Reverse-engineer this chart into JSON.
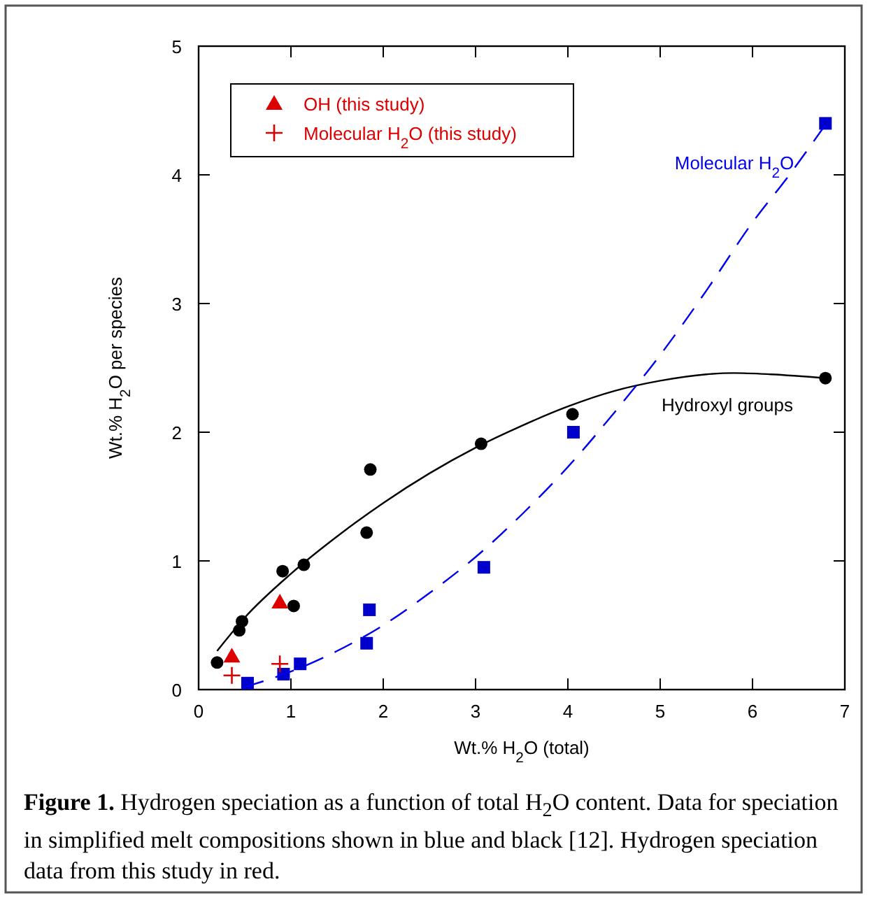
{
  "chart_data": {
    "type": "scatter",
    "xlabel": "Wt.% H$_{2}$O (total)",
    "ylabel": "Wt.% H$_{2}$O per species",
    "xlim": [
      0,
      7
    ],
    "ylim": [
      0,
      5
    ],
    "xticks": [
      0,
      1,
      2,
      3,
      4,
      5,
      6,
      7
    ],
    "yticks": [
      0,
      1,
      2,
      3,
      4,
      5
    ],
    "grid": false,
    "legend": "top left",
    "series": [
      {
        "color": "#000000",
        "marker": "circle",
        "x": [
          0.2,
          0.44,
          0.47,
          0.91,
          1.03,
          1.14,
          1.82,
          1.86,
          3.06,
          4.05,
          6.79
        ],
        "values": [
          0.21,
          0.46,
          0.53,
          0.92,
          0.65,
          0.97,
          1.22,
          1.71,
          1.91,
          2.14,
          2.42
        ]
      },
      {
        "color": "#0000cc",
        "marker": "square",
        "x": [
          0.53,
          0.92,
          1.1,
          1.82,
          1.85,
          3.09,
          4.06,
          6.79
        ],
        "values": [
          0.05,
          0.12,
          0.2,
          0.36,
          0.62,
          0.95,
          2.0,
          4.4
        ]
      },
      {
        "name": "OH (this study)",
        "color": "#dd0000",
        "marker": "triangle",
        "x": [
          0.36,
          0.88
        ],
        "values": [
          0.26,
          0.68
        ]
      },
      {
        "name": "Molecular H$_{2}$O (this study)",
        "color": "#dd0000",
        "marker": "cross",
        "x": [
          0.36,
          0.88
        ],
        "values": [
          0.11,
          0.2
        ]
      },
      {
        "type": "line",
        "color": "#000000",
        "line_style": "solid",
        "marker": "none",
        "x": [
          0.2,
          0.5,
          1,
          1.5,
          2,
          2.5,
          3,
          3.5,
          4,
          4.5,
          5,
          5.5,
          5.8,
          6.2,
          6.8
        ],
        "values": [
          0.3,
          0.56,
          0.9,
          1.19,
          1.45,
          1.68,
          1.88,
          2.05,
          2.2,
          2.32,
          2.4,
          2.45,
          2.46,
          2.45,
          2.42
        ]
      },
      {
        "type": "line",
        "color": "#0000ee",
        "line_style": "dashed",
        "marker": "none",
        "x": [
          0.5,
          1,
          1.5,
          2,
          2.5,
          3,
          3.5,
          4,
          4.5,
          5,
          5.5,
          6,
          6.4,
          6.8
        ],
        "values": [
          0.02,
          0.14,
          0.3,
          0.5,
          0.75,
          1.03,
          1.36,
          1.73,
          2.15,
          2.6,
          3.1,
          3.63,
          4.0,
          4.4
        ]
      }
    ],
    "annotations": [
      "Molecular H$_{2}$O",
      "Hydroxyl groups",
      "**Figure 1.** Hydrogen speciation as a function of total H$_{2}$O content. Data for speciation in simplified melt compositions shown in blue and black [12]. Hydrogen speciation data from this study in red."
    ]
  }
}
